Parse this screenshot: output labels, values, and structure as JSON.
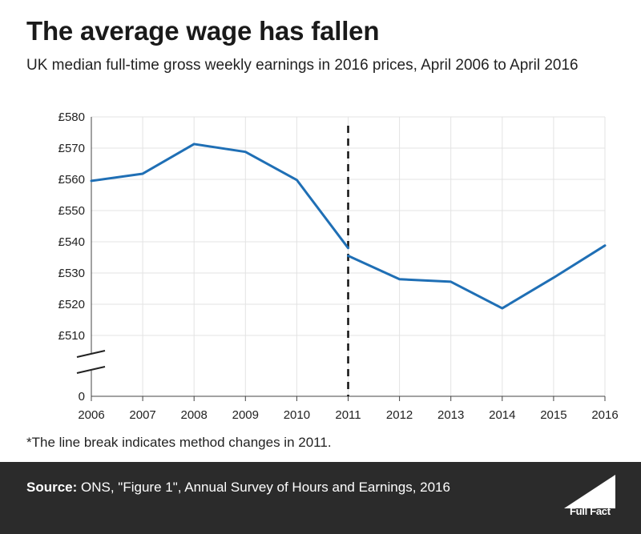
{
  "header": {
    "title": "The average wage has fallen",
    "subtitle": "UK median full-time gross weekly earnings in 2016 prices, April 2006 to April 2016"
  },
  "note": "*The line break indicates method changes in 2011.",
  "footer": {
    "source_label": "Source:",
    "source_text": " ONS, \"Figure 1\", Annual Survey of Hours and Earnings, 2016",
    "logo_text": "Full Fact",
    "background_color": "#2b2b2b"
  },
  "chart_data": {
    "type": "line",
    "x": [
      2006,
      2007,
      2008,
      2009,
      2010,
      2011,
      2012,
      2013,
      2014,
      2015,
      2016
    ],
    "xticks": [
      "2006",
      "2007",
      "2008",
      "2009",
      "2010",
      "2011",
      "2012",
      "2013",
      "2014",
      "2015",
      "2016"
    ],
    "yticks": [
      "£580",
      "£570",
      "£560",
      "£550",
      "£540",
      "£530",
      "£520",
      "£510",
      "0"
    ],
    "series": [
      {
        "segment": "before_2011_method_change",
        "x": [
          2006,
          2007,
          2008,
          2009,
          2010,
          2011
        ],
        "values": [
          559.5,
          561.8,
          571.3,
          568.8,
          559.8,
          538
        ]
      },
      {
        "segment": "after_2011_method_change",
        "x": [
          2011,
          2012,
          2013,
          2014,
          2015,
          2016
        ],
        "values": [
          535.5,
          528,
          527.2,
          518.7,
          528.5,
          538.8
        ]
      }
    ],
    "ylim": [
      510,
      580
    ],
    "y_axis_break": true,
    "vertical_marker": {
      "x": 2011,
      "style": "dashed"
    },
    "line_color": "#1f6fb5",
    "grid": true
  }
}
